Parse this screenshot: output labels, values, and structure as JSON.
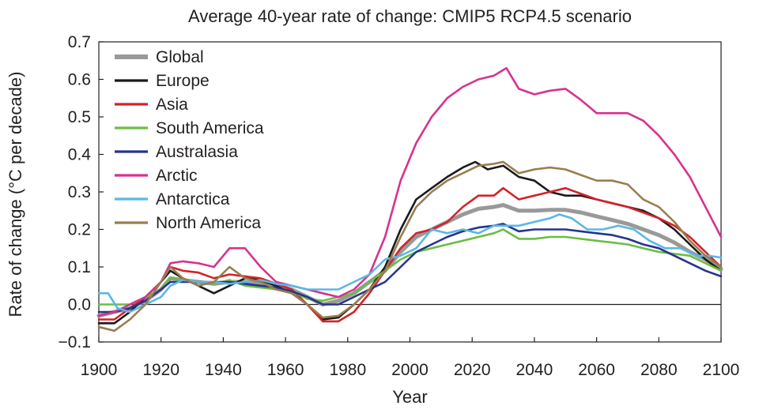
{
  "chart_data": {
    "type": "line",
    "title": "Average 40-year rate of change: CMIP5 RCP4.5 scenario",
    "xlabel": "Year",
    "ylabel": "Rate of change (°C per decade)",
    "xlim": [
      1900,
      2100
    ],
    "ylim": [
      -0.1,
      0.7
    ],
    "x_ticks": [
      "1900",
      "1920",
      "1940",
      "1960",
      "1980",
      "2000",
      "2020",
      "2040",
      "2060",
      "2080",
      "2100"
    ],
    "y_ticks": [
      "−0.1",
      "0.0",
      "0.1",
      "0.2",
      "0.3",
      "0.4",
      "0.5",
      "0.6",
      "0.7"
    ],
    "grid": false,
    "legend_position": "top-left",
    "zero_line": true,
    "series": [
      {
        "name": "Global",
        "color": "#999999",
        "x": [
          1900,
          1905,
          1910,
          1915,
          1920,
          1923,
          1927,
          1932,
          1937,
          1942,
          1947,
          1952,
          1957,
          1962,
          1967,
          1972,
          1977,
          1982,
          1987,
          1992,
          1997,
          2002,
          2007,
          2012,
          2017,
          2022,
          2027,
          2030,
          2035,
          2040,
          2045,
          2050,
          2055,
          2060,
          2065,
          2070,
          2075,
          2080,
          2085,
          2090,
          2095,
          2100
        ],
        "y": [
          -0.03,
          -0.02,
          -0.01,
          0.01,
          0.04,
          0.07,
          0.065,
          0.06,
          0.055,
          0.06,
          0.06,
          0.055,
          0.05,
          0.04,
          0.02,
          0.0,
          0.01,
          0.03,
          0.06,
          0.09,
          0.14,
          0.18,
          0.2,
          0.22,
          0.24,
          0.255,
          0.26,
          0.265,
          0.25,
          0.25,
          0.252,
          0.252,
          0.245,
          0.235,
          0.225,
          0.215,
          0.2,
          0.185,
          0.165,
          0.14,
          0.12,
          0.095
        ]
      },
      {
        "name": "Europe",
        "color": "#1a1a1a",
        "x": [
          1900,
          1905,
          1910,
          1915,
          1920,
          1923,
          1927,
          1932,
          1937,
          1942,
          1947,
          1952,
          1957,
          1962,
          1967,
          1972,
          1977,
          1982,
          1987,
          1992,
          1997,
          2002,
          2007,
          2012,
          2017,
          2021,
          2025,
          2030,
          2035,
          2040,
          2045,
          2050,
          2055,
          2060,
          2065,
          2070,
          2075,
          2080,
          2085,
          2090,
          2095,
          2100
        ],
        "y": [
          -0.05,
          -0.05,
          -0.02,
          0.02,
          0.06,
          0.09,
          0.07,
          0.05,
          0.03,
          0.05,
          0.07,
          0.065,
          0.05,
          0.03,
          0.0,
          -0.04,
          -0.035,
          0.0,
          0.04,
          0.1,
          0.2,
          0.28,
          0.31,
          0.34,
          0.365,
          0.38,
          0.36,
          0.37,
          0.34,
          0.33,
          0.3,
          0.29,
          0.29,
          0.28,
          0.27,
          0.26,
          0.25,
          0.23,
          0.2,
          0.16,
          0.12,
          0.09
        ]
      },
      {
        "name": "Asia",
        "color": "#d2232a",
        "x": [
          1900,
          1905,
          1910,
          1915,
          1920,
          1923,
          1927,
          1932,
          1937,
          1942,
          1947,
          1952,
          1957,
          1962,
          1967,
          1972,
          1977,
          1982,
          1987,
          1992,
          1997,
          2002,
          2007,
          2012,
          2017,
          2022,
          2027,
          2030,
          2035,
          2040,
          2045,
          2050,
          2055,
          2060,
          2065,
          2070,
          2075,
          2080,
          2085,
          2090,
          2095,
          2100
        ],
        "y": [
          -0.04,
          -0.04,
          -0.01,
          0.02,
          0.06,
          0.1,
          0.09,
          0.085,
          0.07,
          0.08,
          0.075,
          0.07,
          0.055,
          0.04,
          0.0,
          -0.045,
          -0.045,
          -0.02,
          0.03,
          0.09,
          0.15,
          0.19,
          0.2,
          0.22,
          0.26,
          0.29,
          0.29,
          0.31,
          0.28,
          0.29,
          0.3,
          0.31,
          0.295,
          0.28,
          0.27,
          0.26,
          0.245,
          0.23,
          0.21,
          0.18,
          0.14,
          0.1
        ]
      },
      {
        "name": "South America",
        "color": "#6cbd45",
        "x": [
          1900,
          1905,
          1910,
          1915,
          1920,
          1923,
          1927,
          1932,
          1937,
          1942,
          1947,
          1952,
          1957,
          1962,
          1967,
          1972,
          1977,
          1982,
          1987,
          1992,
          1997,
          2002,
          2007,
          2012,
          2017,
          2022,
          2027,
          2030,
          2035,
          2040,
          2045,
          2050,
          2055,
          2060,
          2065,
          2070,
          2075,
          2080,
          2085,
          2090,
          2095,
          2100
        ],
        "y": [
          0.0,
          0.0,
          0.0,
          0.02,
          0.04,
          0.07,
          0.065,
          0.06,
          0.055,
          0.065,
          0.05,
          0.045,
          0.04,
          0.035,
          0.015,
          0.01,
          0.02,
          0.03,
          0.06,
          0.09,
          0.12,
          0.14,
          0.15,
          0.16,
          0.17,
          0.18,
          0.19,
          0.2,
          0.175,
          0.175,
          0.18,
          0.18,
          0.175,
          0.17,
          0.165,
          0.16,
          0.15,
          0.14,
          0.135,
          0.13,
          0.11,
          0.09
        ]
      },
      {
        "name": "Australasia",
        "color": "#26358c",
        "x": [
          1900,
          1905,
          1910,
          1915,
          1920,
          1923,
          1927,
          1932,
          1937,
          1942,
          1947,
          1952,
          1957,
          1962,
          1967,
          1972,
          1977,
          1982,
          1987,
          1992,
          1997,
          2002,
          2007,
          2012,
          2017,
          2022,
          2027,
          2030,
          2035,
          2040,
          2045,
          2050,
          2055,
          2060,
          2065,
          2070,
          2075,
          2080,
          2085,
          2090,
          2095,
          2100
        ],
        "y": [
          -0.02,
          -0.02,
          -0.01,
          0.01,
          0.04,
          0.06,
          0.06,
          0.06,
          0.06,
          0.06,
          0.055,
          0.05,
          0.045,
          0.035,
          0.02,
          0.0,
          0.0,
          0.02,
          0.04,
          0.06,
          0.1,
          0.14,
          0.16,
          0.18,
          0.195,
          0.205,
          0.21,
          0.215,
          0.195,
          0.2,
          0.2,
          0.2,
          0.195,
          0.19,
          0.185,
          0.175,
          0.16,
          0.15,
          0.13,
          0.11,
          0.09,
          0.075
        ]
      },
      {
        "name": "Arctic",
        "color": "#d6338f",
        "x": [
          1900,
          1905,
          1910,
          1915,
          1920,
          1923,
          1927,
          1932,
          1937,
          1942,
          1947,
          1952,
          1957,
          1962,
          1967,
          1972,
          1977,
          1982,
          1987,
          1992,
          1997,
          2002,
          2007,
          2012,
          2017,
          2022,
          2027,
          2031,
          2035,
          2040,
          2045,
          2050,
          2055,
          2060,
          2065,
          2070,
          2075,
          2080,
          2085,
          2090,
          2095,
          2100
        ],
        "y": [
          -0.03,
          -0.02,
          0.0,
          0.02,
          0.06,
          0.11,
          0.115,
          0.11,
          0.1,
          0.15,
          0.15,
          0.1,
          0.06,
          0.05,
          0.04,
          0.03,
          0.02,
          0.04,
          0.08,
          0.18,
          0.33,
          0.43,
          0.5,
          0.55,
          0.58,
          0.6,
          0.61,
          0.63,
          0.575,
          0.56,
          0.57,
          0.575,
          0.545,
          0.51,
          0.51,
          0.51,
          0.49,
          0.45,
          0.4,
          0.34,
          0.26,
          0.18
        ]
      },
      {
        "name": "Antarctica",
        "color": "#5bb7e5",
        "x": [
          1900,
          1903,
          1906,
          1910,
          1915,
          1920,
          1923,
          1927,
          1932,
          1937,
          1942,
          1947,
          1952,
          1957,
          1962,
          1967,
          1972,
          1977,
          1982,
          1987,
          1992,
          1997,
          2002,
          2007,
          2012,
          2017,
          2022,
          2027,
          2030,
          2035,
          2040,
          2045,
          2048,
          2052,
          2057,
          2062,
          2067,
          2072,
          2077,
          2082,
          2087,
          2092,
          2096,
          2100
        ],
        "y": [
          0.03,
          0.03,
          -0.01,
          -0.02,
          0.0,
          0.02,
          0.05,
          0.065,
          0.06,
          0.06,
          0.055,
          0.06,
          0.065,
          0.055,
          0.05,
          0.04,
          0.04,
          0.04,
          0.06,
          0.08,
          0.12,
          0.13,
          0.15,
          0.2,
          0.19,
          0.2,
          0.19,
          0.21,
          0.21,
          0.21,
          0.22,
          0.23,
          0.24,
          0.23,
          0.2,
          0.2,
          0.21,
          0.2,
          0.17,
          0.15,
          0.15,
          0.13,
          0.13,
          0.125
        ]
      },
      {
        "name": "North America",
        "color": "#9a7d4f",
        "x": [
          1900,
          1905,
          1910,
          1915,
          1920,
          1923,
          1927,
          1932,
          1937,
          1942,
          1947,
          1952,
          1957,
          1962,
          1967,
          1972,
          1977,
          1982,
          1987,
          1992,
          1997,
          2002,
          2007,
          2012,
          2017,
          2022,
          2027,
          2030,
          2035,
          2040,
          2045,
          2050,
          2055,
          2060,
          2065,
          2070,
          2075,
          2080,
          2085,
          2090,
          2095,
          2100
        ],
        "y": [
          -0.06,
          -0.07,
          -0.04,
          0.0,
          0.06,
          0.1,
          0.07,
          0.05,
          0.06,
          0.1,
          0.07,
          0.06,
          0.04,
          0.03,
          0.0,
          -0.035,
          -0.03,
          0.0,
          0.04,
          0.09,
          0.18,
          0.26,
          0.3,
          0.33,
          0.35,
          0.37,
          0.375,
          0.38,
          0.35,
          0.36,
          0.365,
          0.36,
          0.345,
          0.33,
          0.33,
          0.32,
          0.28,
          0.26,
          0.22,
          0.17,
          0.13,
          0.1
        ]
      }
    ]
  }
}
